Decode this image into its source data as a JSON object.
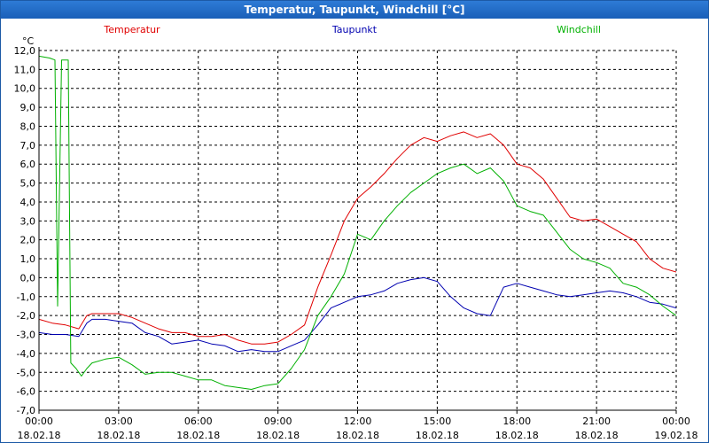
{
  "window": {
    "title": "Temperatur, Taupunkt, Windchill [°C]"
  },
  "chart_data": {
    "type": "line",
    "title": "Temperatur, Taupunkt, Windchill [°C]",
    "ylabel": "°C",
    "ylim": [
      -7,
      12
    ],
    "yticks": [
      "12,0",
      "11,0",
      "10,0",
      "9,0",
      "8,0",
      "7,0",
      "6,0",
      "5,0",
      "4,0",
      "3,0",
      "2,0",
      "1,0",
      "0,0",
      "-1,0",
      "-2,0",
      "-3,0",
      "-4,0",
      "-5,0",
      "-6,0",
      "-7,0"
    ],
    "xlim": [
      0,
      24
    ],
    "xticks": [
      {
        "time": "00:00",
        "date": "18.02.18"
      },
      {
        "time": "03:00",
        "date": "18.02.18"
      },
      {
        "time": "06:00",
        "date": "18.02.18"
      },
      {
        "time": "09:00",
        "date": "18.02.18"
      },
      {
        "time": "12:00",
        "date": "18.02.18"
      },
      {
        "time": "15:00",
        "date": "18.02.18"
      },
      {
        "time": "18:00",
        "date": "18.02.18"
      },
      {
        "time": "21:00",
        "date": "18.02.18"
      },
      {
        "time": "00:00",
        "date": "19.02.18"
      }
    ],
    "grid": true,
    "series": [
      {
        "name": "Temperatur",
        "color": "#e00000",
        "x": [
          0,
          0.5,
          1,
          1.5,
          1.8,
          2.0,
          2.5,
          3.0,
          3.5,
          4.0,
          4.5,
          5.0,
          5.5,
          6.0,
          6.5,
          7.0,
          7.5,
          8.0,
          8.5,
          9.0,
          9.5,
          10.0,
          10.5,
          11.0,
          11.5,
          12.0,
          12.5,
          13.0,
          13.5,
          14.0,
          14.5,
          15.0,
          15.5,
          16.0,
          16.5,
          17.0,
          17.5,
          18.0,
          18.5,
          19.0,
          19.5,
          20.0,
          20.5,
          21.0,
          21.5,
          22.0,
          22.5,
          23.0,
          23.5,
          24.0
        ],
        "values": [
          -2.2,
          -2.4,
          -2.5,
          -2.7,
          -2.0,
          -1.9,
          -1.9,
          -1.9,
          -2.1,
          -2.4,
          -2.7,
          -2.9,
          -2.9,
          -3.1,
          -3.1,
          -3.0,
          -3.3,
          -3.5,
          -3.5,
          -3.4,
          -3.0,
          -2.5,
          -0.5,
          1.2,
          3.0,
          4.2,
          4.8,
          5.5,
          6.3,
          7.0,
          7.4,
          7.2,
          7.5,
          7.7,
          7.4,
          7.6,
          7.0,
          6.0,
          5.8,
          5.2,
          4.2,
          3.2,
          3.0,
          3.1,
          2.7,
          2.3,
          1.9,
          1.0,
          0.5,
          0.3
        ]
      },
      {
        "name": "Taupunkt",
        "color": "#0000b0",
        "x": [
          0,
          0.5,
          1,
          1.5,
          1.8,
          2.0,
          2.5,
          3.0,
          3.5,
          4.0,
          4.5,
          5.0,
          5.5,
          6.0,
          6.5,
          7.0,
          7.5,
          8.0,
          8.5,
          9.0,
          9.5,
          10.0,
          10.5,
          11.0,
          11.5,
          12.0,
          12.5,
          13.0,
          13.5,
          14.0,
          14.5,
          15.0,
          15.5,
          16.0,
          16.5,
          17.0,
          17.5,
          18.0,
          18.5,
          19.0,
          19.5,
          20.0,
          20.5,
          21.0,
          21.5,
          22.0,
          22.5,
          23.0,
          23.5,
          24.0
        ],
        "values": [
          -2.9,
          -3.0,
          -3.0,
          -3.1,
          -2.4,
          -2.2,
          -2.2,
          -2.3,
          -2.4,
          -2.9,
          -3.1,
          -3.5,
          -3.4,
          -3.3,
          -3.5,
          -3.6,
          -3.9,
          -3.8,
          -3.9,
          -3.9,
          -3.6,
          -3.3,
          -2.5,
          -1.6,
          -1.3,
          -1.0,
          -0.9,
          -0.7,
          -0.3,
          -0.1,
          0.0,
          -0.2,
          -1.0,
          -1.6,
          -1.9,
          -2.0,
          -0.5,
          -0.3,
          -0.5,
          -0.7,
          -0.9,
          -1.0,
          -0.9,
          -0.8,
          -0.7,
          -0.8,
          -1.0,
          -1.3,
          -1.4,
          -1.6
        ]
      },
      {
        "name": "Windchill",
        "color": "#00b000",
        "x": [
          0,
          0.4,
          0.6,
          0.7,
          0.85,
          1.0,
          1.1,
          1.2,
          1.4,
          1.6,
          1.8,
          2.0,
          2.5,
          3.0,
          3.5,
          4.0,
          4.5,
          5.0,
          5.5,
          6.0,
          6.5,
          7.0,
          7.5,
          8.0,
          8.5,
          9.0,
          9.5,
          10.0,
          10.5,
          11.0,
          11.5,
          12.0,
          12.5,
          13.0,
          13.5,
          14.0,
          14.5,
          15.0,
          15.5,
          16.0,
          16.5,
          17.0,
          17.5,
          18.0,
          18.5,
          19.0,
          19.5,
          20.0,
          20.5,
          21.0,
          21.5,
          22.0,
          22.5,
          23.0,
          23.5,
          24.0
        ],
        "values": [
          11.7,
          11.6,
          11.5,
          -1.5,
          11.5,
          11.5,
          11.5,
          -4.5,
          -4.8,
          -5.2,
          -4.8,
          -4.5,
          -4.3,
          -4.2,
          -4.6,
          -5.1,
          -5.0,
          -5.0,
          -5.2,
          -5.4,
          -5.4,
          -5.7,
          -5.8,
          -5.9,
          -5.7,
          -5.6,
          -4.8,
          -3.8,
          -2.0,
          -1.0,
          0.2,
          2.3,
          2.0,
          3.0,
          3.8,
          4.5,
          5.0,
          5.5,
          5.8,
          6.0,
          5.5,
          5.8,
          5.1,
          3.8,
          3.5,
          3.3,
          2.4,
          1.5,
          1.0,
          0.8,
          0.5,
          -0.3,
          -0.5,
          -0.9,
          -1.5,
          -2.0
        ]
      }
    ]
  }
}
